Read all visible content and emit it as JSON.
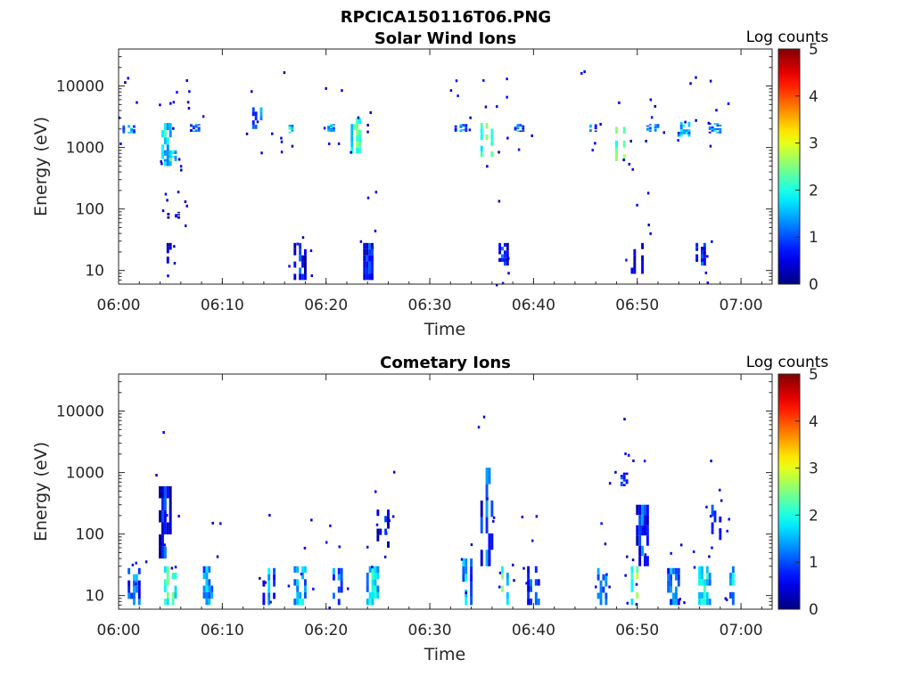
{
  "figure": {
    "title": "RPCICA150116T06.PNG"
  },
  "chart_data": [
    {
      "type": "heatmap",
      "title": "Solar Wind Ions",
      "xlabel": "Time",
      "ylabel": "Energy (eV)",
      "x_ticks": [
        "06:00",
        "06:10",
        "06:20",
        "06:30",
        "06:40",
        "06:50",
        "07:00"
      ],
      "xlim": [
        "06:00",
        "07:03"
      ],
      "y_scale": "log",
      "y_ticks": [
        "10",
        "100",
        "1000",
        "10000"
      ],
      "ylim": [
        6,
        40000
      ],
      "colorbar": {
        "label": "Log counts",
        "ticks": [
          "0",
          "1",
          "2",
          "3",
          "4",
          "5"
        ],
        "range": [
          0,
          5
        ],
        "colormap": "jet"
      },
      "z_unit": "log10 counts",
      "bursts": [
        {
          "t": 1.0,
          "e_min": 1700,
          "e_max": 2300,
          "z": 1.6
        },
        {
          "t": 4.5,
          "e_min": 500,
          "e_max": 2500,
          "z": 1.8
        },
        {
          "t": 5.0,
          "e_min": 600,
          "e_max": 900,
          "z": 2.0
        },
        {
          "t": 5.0,
          "e_min": 13,
          "e_max": 28,
          "z": 0.6
        },
        {
          "t": 5.3,
          "e_min": 70,
          "e_max": 90,
          "z": 0.6
        },
        {
          "t": 7.5,
          "e_min": 1800,
          "e_max": 2400,
          "z": 1.4
        },
        {
          "t": 13.5,
          "e_min": 1700,
          "e_max": 4500,
          "z": 1.5
        },
        {
          "t": 16.5,
          "e_min": 1700,
          "e_max": 2500,
          "z": 1.8
        },
        {
          "t": 17.5,
          "e_min": 7,
          "e_max": 28,
          "z": 0.9
        },
        {
          "t": 20.5,
          "e_min": 1800,
          "e_max": 2400,
          "z": 1.6
        },
        {
          "t": 23.0,
          "e_min": 800,
          "e_max": 3000,
          "z": 2.2
        },
        {
          "t": 24.2,
          "e_min": 7,
          "e_max": 28,
          "z": 0.9
        },
        {
          "t": 33.0,
          "e_min": 1800,
          "e_max": 2400,
          "z": 1.4
        },
        {
          "t": 35.5,
          "e_min": 700,
          "e_max": 2500,
          "z": 2.6
        },
        {
          "t": 37.0,
          "e_min": 12,
          "e_max": 28,
          "z": 0.9
        },
        {
          "t": 38.5,
          "e_min": 1800,
          "e_max": 2400,
          "z": 1.4
        },
        {
          "t": 45.5,
          "e_min": 1800,
          "e_max": 2400,
          "z": 1.5
        },
        {
          "t": 48.5,
          "e_min": 600,
          "e_max": 2800,
          "z": 2.8
        },
        {
          "t": 50.0,
          "e_min": 7,
          "e_max": 28,
          "z": 0.8
        },
        {
          "t": 51.5,
          "e_min": 1800,
          "e_max": 2400,
          "z": 1.6
        },
        {
          "t": 54.5,
          "e_min": 1500,
          "e_max": 2600,
          "z": 1.8
        },
        {
          "t": 56.0,
          "e_min": 12,
          "e_max": 28,
          "z": 1.2
        },
        {
          "t": 57.5,
          "e_min": 1700,
          "e_max": 2500,
          "z": 1.5
        }
      ]
    },
    {
      "type": "heatmap",
      "title": "Cometary Ions",
      "xlabel": "Time",
      "ylabel": "Energy (eV)",
      "x_ticks": [
        "06:00",
        "06:10",
        "06:20",
        "06:30",
        "06:40",
        "06:50",
        "07:00"
      ],
      "xlim": [
        "06:00",
        "07:03"
      ],
      "y_scale": "log",
      "y_ticks": [
        "10",
        "100",
        "1000",
        "10000"
      ],
      "ylim": [
        6,
        40000
      ],
      "colorbar": {
        "label": "Log counts",
        "ticks": [
          "0",
          "1",
          "2",
          "3",
          "4",
          "5"
        ],
        "range": [
          0,
          5
        ],
        "colormap": "jet"
      },
      "z_unit": "log10 counts",
      "bursts": [
        {
          "t": 1.5,
          "e_min": 7,
          "e_max": 28,
          "z": 1.5
        },
        {
          "t": 5.0,
          "e_min": 7,
          "e_max": 30,
          "z": 2.4
        },
        {
          "t": 4.5,
          "e_min": 40,
          "e_max": 600,
          "z": 0.9
        },
        {
          "t": 8.5,
          "e_min": 7,
          "e_max": 30,
          "z": 1.6
        },
        {
          "t": 14.5,
          "e_min": 7,
          "e_max": 28,
          "z": 1.5
        },
        {
          "t": 17.5,
          "e_min": 7,
          "e_max": 30,
          "z": 1.8
        },
        {
          "t": 21.0,
          "e_min": 7,
          "e_max": 28,
          "z": 1.5
        },
        {
          "t": 24.5,
          "e_min": 7,
          "e_max": 30,
          "z": 2.0
        },
        {
          "t": 25.5,
          "e_min": 60,
          "e_max": 250,
          "z": 0.8
        },
        {
          "t": 33.5,
          "e_min": 7,
          "e_max": 40,
          "z": 1.6
        },
        {
          "t": 35.5,
          "e_min": 30,
          "e_max": 1200,
          "z": 1.2
        },
        {
          "t": 37.0,
          "e_min": 7,
          "e_max": 30,
          "z": 2.2
        },
        {
          "t": 40.0,
          "e_min": 7,
          "e_max": 30,
          "z": 1.5
        },
        {
          "t": 46.5,
          "e_min": 7,
          "e_max": 28,
          "z": 1.6
        },
        {
          "t": 48.5,
          "e_min": 600,
          "e_max": 1000,
          "z": 0.9
        },
        {
          "t": 50.0,
          "e_min": 7,
          "e_max": 30,
          "z": 2.5
        },
        {
          "t": 50.5,
          "e_min": 30,
          "e_max": 300,
          "z": 1.0
        },
        {
          "t": 53.5,
          "e_min": 7,
          "e_max": 28,
          "z": 1.5
        },
        {
          "t": 56.5,
          "e_min": 7,
          "e_max": 30,
          "z": 2.1
        },
        {
          "t": 57.5,
          "e_min": 80,
          "e_max": 300,
          "z": 1.0
        },
        {
          "t": 59.5,
          "e_min": 7,
          "e_max": 30,
          "z": 1.8
        }
      ]
    }
  ]
}
